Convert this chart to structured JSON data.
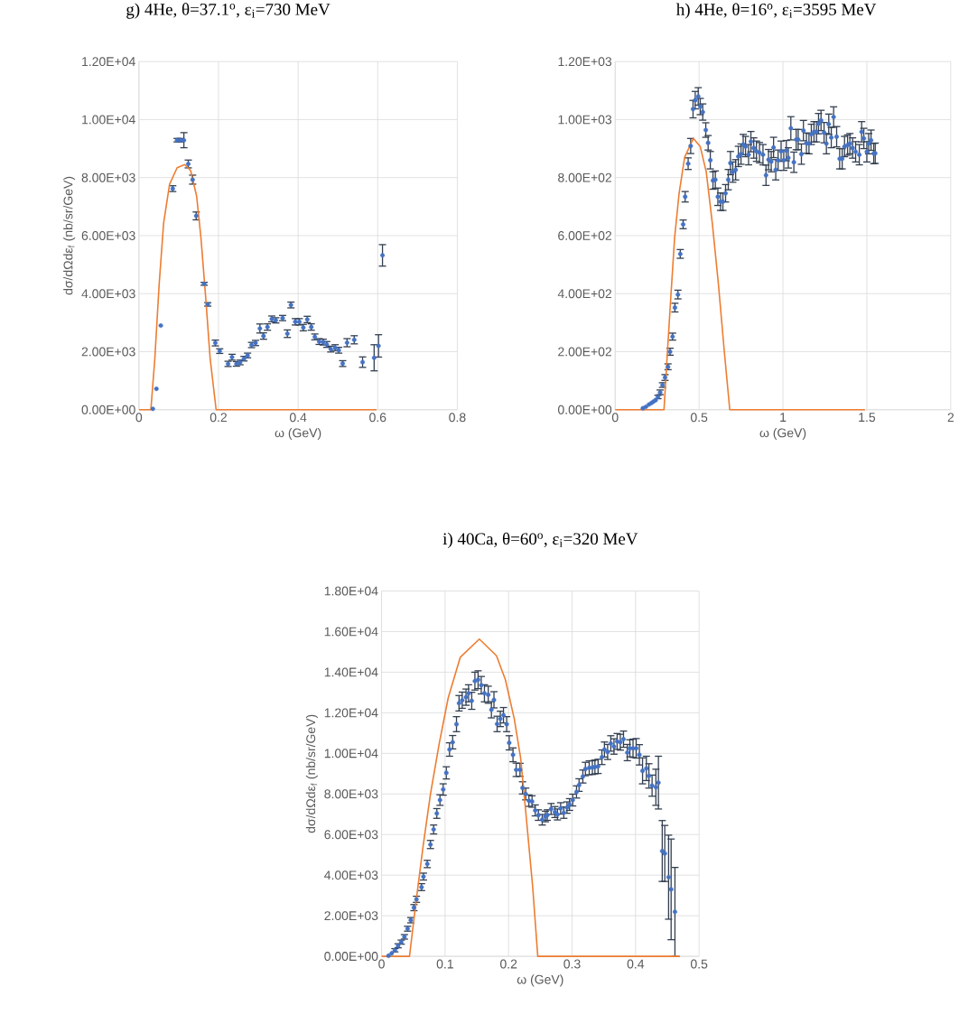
{
  "chart_data": [
    {
      "type": "scatter",
      "title": "g) 4He, θ=37.1$^{o}$, ε$_{i}$=730 MeV",
      "xlabel": "ω (GeV)",
      "ylabel": "dσ/dΩdε$_{f}$ (nb/sr/GeV)",
      "xlim": [
        0,
        0.8
      ],
      "xticks": [
        0,
        0.2,
        0.4,
        0.6,
        0.8
      ],
      "ylim": [
        0,
        12000
      ],
      "yticks": [
        {
          "value": 0,
          "label": "0.00E+00"
        },
        {
          "value": 2000,
          "label": "2.00E+03"
        },
        {
          "value": 4000,
          "label": "4.00E+03"
        },
        {
          "value": 6000,
          "label": "6.00E+03"
        },
        {
          "value": 8000,
          "label": "8.00E+03"
        },
        {
          "value": 10000,
          "label": "1.00E+04"
        },
        {
          "value": 12000,
          "label": "1.20E+04"
        }
      ],
      "grid": true,
      "series": [
        {
          "marker": "circle",
          "color": "#4472c4",
          "x": [
            0.035,
            0.044,
            0.055,
            0.085,
            0.096,
            0.104,
            0.113,
            0.124,
            0.135,
            0.144,
            0.164,
            0.173,
            0.192,
            0.203,
            0.224,
            0.234,
            0.245,
            0.254,
            0.264,
            0.273,
            0.283,
            0.293,
            0.304,
            0.313,
            0.323,
            0.334,
            0.344,
            0.361,
            0.373,
            0.382,
            0.393,
            0.403,
            0.413,
            0.423,
            0.433,
            0.442,
            0.453,
            0.463,
            0.472,
            0.482,
            0.493,
            0.502,
            0.512,
            0.523,
            0.541,
            0.562,
            0.591,
            0.602,
            0.612
          ],
          "values": [
            30,
            720,
            2900,
            7620,
            9290,
            9290,
            9290,
            8470,
            7930,
            6680,
            4340,
            3630,
            2300,
            2020,
            1580,
            1810,
            1580,
            1630,
            1760,
            1870,
            2230,
            2300,
            2800,
            2540,
            2850,
            3130,
            3080,
            3160,
            2620,
            3610,
            3030,
            3030,
            2830,
            3110,
            2850,
            2510,
            2350,
            2330,
            2250,
            2090,
            2140,
            2050,
            1590,
            2310,
            2410,
            1640,
            1790,
            2200,
            5320
          ],
          "errors": [
            null,
            null,
            null,
            100,
            60,
            60,
            260,
            135,
            155,
            135,
            50,
            60,
            100,
            80,
            90,
            100,
            80,
            80,
            80,
            80,
            90,
            90,
            155,
            110,
            110,
            100,
            90,
            90,
            130,
            100,
            110,
            110,
            110,
            110,
            110,
            100,
            100,
            100,
            100,
            100,
            100,
            100,
            100,
            140,
            140,
            180,
            450,
            385,
            370
          ]
        },
        {
          "type": "line",
          "marker": "none",
          "color": "#ed7d31",
          "x": [
            0,
            0.03,
            0.04,
            0.051,
            0.062,
            0.077,
            0.096,
            0.115,
            0.13,
            0.145,
            0.156,
            0.168,
            0.179,
            0.194,
            0.597
          ],
          "values": [
            0,
            0,
            1760,
            4350,
            6420,
            7770,
            8340,
            8450,
            8240,
            7360,
            5910,
            3830,
            1760,
            0,
            0
          ]
        }
      ]
    },
    {
      "type": "scatter",
      "title": "h) 4He, θ=16$^{o}$, ε$_{i}$=3595 MeV",
      "xlabel": "ω (GeV)",
      "xlim": [
        0,
        2
      ],
      "xticks": [
        0,
        0.5,
        1,
        1.5,
        2
      ],
      "ylim": [
        0,
        1200
      ],
      "yticks": [
        {
          "value": 0,
          "label": "0.00E+00"
        },
        {
          "value": 200,
          "label": "2.00E+02"
        },
        {
          "value": 400,
          "label": "4.00E+02"
        },
        {
          "value": 600,
          "label": "6.00E+02"
        },
        {
          "value": 800,
          "label": "8.00E+02"
        },
        {
          "value": 1000,
          "label": "1.00E+03"
        },
        {
          "value": 1200,
          "label": "1.20E+03"
        }
      ],
      "grid": true,
      "series": [
        {
          "marker": "circle",
          "color": "#4472c4",
          "x": [
            0.165,
            0.183,
            0.201,
            0.216,
            0.228,
            0.241,
            0.255,
            0.268,
            0.282,
            0.297,
            0.315,
            0.327,
            0.342,
            0.356,
            0.374,
            0.388,
            0.405,
            0.417,
            0.435,
            0.45,
            0.464,
            0.477,
            0.495,
            0.507,
            0.522,
            0.54,
            0.554,
            0.567,
            0.583,
            0.597,
            0.612,
            0.628,
            0.642,
            0.658,
            0.674,
            0.687,
            0.701,
            0.718,
            0.734,
            0.75,
            0.763,
            0.777,
            0.795,
            0.809,
            0.826,
            0.842,
            0.86,
            0.881,
            0.899,
            0.914,
            0.93,
            0.944,
            0.957,
            0.971,
            0.989,
            1.005,
            1.02,
            1.032,
            1.047,
            1.065,
            1.079,
            1.091,
            1.11,
            1.122,
            1.14,
            1.155,
            1.169,
            1.185,
            1.2,
            1.212,
            1.227,
            1.245,
            1.259,
            1.273,
            1.288,
            1.302,
            1.32,
            1.338,
            1.353,
            1.367,
            1.385,
            1.399,
            1.415,
            1.433,
            1.455,
            1.469,
            1.482,
            1.5,
            1.511,
            1.525,
            1.541,
            1.55
          ],
          "values": [
            5,
            10,
            18,
            23,
            28,
            33,
            44,
            60,
            85,
            111,
            148,
            200,
            252,
            352,
            397,
            537,
            639,
            734,
            848,
            909,
            1036,
            1067,
            1080,
            1045,
            1026,
            964,
            920,
            860,
            790,
            793,
            734,
            717,
            717,
            746,
            793,
            850,
            819,
            827,
            873,
            881,
            914,
            907,
            879,
            924,
            902,
            891,
            886,
            879,
            808,
            862,
            855,
            904,
            827,
            860,
            891,
            860,
            893,
            868,
            970,
            853,
            931,
            931,
            881,
            962,
            919,
            917,
            949,
            958,
            958,
            986,
            997,
            955,
            917,
            984,
            938,
            1009,
            941,
            865,
            865,
            907,
            912,
            917,
            902,
            889,
            879,
            958,
            935,
            889,
            917,
            929,
            883,
            884
          ],
          "errors": [
            null,
            null,
            null,
            null,
            null,
            null,
            6,
            8,
            8,
            10,
            10,
            12,
            12,
            15,
            15,
            15,
            15,
            18,
            20,
            26,
            30,
            30,
            30,
            28,
            28,
            25,
            25,
            30,
            30,
            30,
            30,
            30,
            30,
            30,
            35,
            40,
            35,
            35,
            35,
            35,
            35,
            35,
            35,
            35,
            35,
            35,
            35,
            35,
            35,
            35,
            35,
            35,
            35,
            35,
            35,
            35,
            35,
            35,
            40,
            35,
            35,
            35,
            35,
            35,
            35,
            35,
            35,
            35,
            35,
            35,
            35,
            35,
            35,
            35,
            35,
            35,
            35,
            35,
            35,
            35,
            35,
            35,
            35,
            35,
            35,
            35,
            35,
            35,
            35,
            35,
            35,
            35
          ]
        },
        {
          "type": "line",
          "marker": "none",
          "color": "#ed7d31",
          "x": [
            0,
            0.291,
            0.309,
            0.331,
            0.354,
            0.381,
            0.414,
            0.466,
            0.507,
            0.543,
            0.579,
            0.615,
            0.651,
            0.683,
            1.489
          ],
          "values": [
            0,
            0,
            176,
            383,
            591,
            746,
            870,
            935,
            907,
            819,
            642,
            435,
            197,
            0,
            0
          ]
        }
      ]
    },
    {
      "type": "scatter",
      "title": "i) 40Ca, θ=60$^{o}$, ε$_{i}$=320 MeV",
      "xlabel": "ω (GeV)",
      "ylabel": "dσ/dΩdε$_{f}$ (nb/sr/GeV)",
      "xlim": [
        0,
        0.5
      ],
      "xticks": [
        0,
        0.1,
        0.2,
        0.3,
        0.4,
        0.5
      ],
      "ylim": [
        0,
        18000
      ],
      "yticks": [
        {
          "value": 0,
          "label": "0.00E+00"
        },
        {
          "value": 2000,
          "label": "2.00E+03"
        },
        {
          "value": 4000,
          "label": "4.00E+03"
        },
        {
          "value": 6000,
          "label": "6.00E+03"
        },
        {
          "value": 8000,
          "label": "8.00E+03"
        },
        {
          "value": 10000,
          "label": "1.00E+04"
        },
        {
          "value": 12000,
          "label": "1.20E+04"
        },
        {
          "value": 14000,
          "label": "1.40E+04"
        },
        {
          "value": 16000,
          "label": "1.60E+04"
        },
        {
          "value": 18000,
          "label": "1.80E+04"
        }
      ],
      "grid": true,
      "series": [
        {
          "marker": "circle",
          "color": "#4472c4",
          "x": [
            0.011,
            0.016,
            0.021,
            0.026,
            0.031,
            0.036,
            0.041,
            0.046,
            0.051,
            0.055,
            0.063,
            0.066,
            0.072,
            0.077,
            0.082,
            0.087,
            0.092,
            0.097,
            0.102,
            0.107,
            0.112,
            0.118,
            0.122,
            0.127,
            0.133,
            0.137,
            0.142,
            0.147,
            0.152,
            0.157,
            0.162,
            0.168,
            0.173,
            0.177,
            0.182,
            0.187,
            0.192,
            0.197,
            0.201,
            0.207,
            0.212,
            0.218,
            0.222,
            0.227,
            0.232,
            0.237,
            0.242,
            0.247,
            0.253,
            0.258,
            0.261,
            0.267,
            0.273,
            0.277,
            0.282,
            0.287,
            0.292,
            0.296,
            0.301,
            0.307,
            0.311,
            0.317,
            0.321,
            0.327,
            0.332,
            0.336,
            0.341,
            0.347,
            0.351,
            0.356,
            0.361,
            0.366,
            0.371,
            0.376,
            0.381,
            0.387,
            0.391,
            0.396,
            0.401,
            0.406,
            0.411,
            0.417,
            0.421,
            0.426,
            0.432,
            0.436,
            0.442,
            0.446,
            0.452,
            0.456,
            0.462
          ],
          "values": [
            30,
            150,
            300,
            520,
            700,
            960,
            1360,
            1780,
            2400,
            2810,
            3410,
            3930,
            4550,
            5510,
            6250,
            7040,
            7700,
            8220,
            9040,
            10190,
            10550,
            11440,
            12470,
            12620,
            12770,
            12960,
            12590,
            13560,
            13630,
            13360,
            12960,
            12890,
            12150,
            12640,
            11450,
            11700,
            11880,
            11440,
            10520,
            9930,
            9190,
            9190,
            8300,
            8000,
            7670,
            7630,
            7190,
            6960,
            6730,
            6890,
            6960,
            7260,
            7110,
            6990,
            7290,
            7080,
            7330,
            7480,
            7700,
            8100,
            8440,
            8860,
            9230,
            9290,
            9300,
            9330,
            9360,
            9810,
            10190,
            10070,
            10490,
            10340,
            10590,
            10550,
            10700,
            10040,
            10250,
            10250,
            10250,
            9930,
            9140,
            9260,
            8890,
            8410,
            8330,
            8560,
            5190,
            5070,
            3900,
            3300,
            2190
          ],
          "errors": [
            null,
            null,
            80,
            100,
            100,
            110,
            120,
            130,
            150,
            150,
            170,
            170,
            180,
            200,
            220,
            240,
            260,
            280,
            300,
            330,
            330,
            370,
            380,
            400,
            400,
            420,
            420,
            440,
            440,
            430,
            420,
            420,
            400,
            400,
            380,
            380,
            380,
            370,
            350,
            340,
            330,
            320,
            300,
            290,
            280,
            280,
            270,
            260,
            260,
            260,
            260,
            270,
            270,
            270,
            280,
            280,
            280,
            290,
            290,
            300,
            310,
            320,
            330,
            340,
            340,
            340,
            350,
            360,
            370,
            370,
            380,
            380,
            390,
            390,
            400,
            400,
            420,
            450,
            480,
            500,
            640,
            600,
            600,
            520,
            890,
            1300,
            1500,
            1380,
            2070,
            2480,
            2190
          ]
        },
        {
          "type": "line",
          "marker": "none",
          "color": "#ed7d31",
          "x": [
            0,
            0.044,
            0.053,
            0.065,
            0.077,
            0.091,
            0.105,
            0.124,
            0.154,
            0.181,
            0.195,
            0.209,
            0.219,
            0.228,
            0.238,
            0.246,
            0.47
          ],
          "values": [
            0,
            0,
            2370,
            5330,
            8000,
            10520,
            12740,
            14740,
            15630,
            14810,
            13630,
            11700,
            9780,
            6810,
            3410,
            0,
            0
          ]
        }
      ]
    }
  ]
}
